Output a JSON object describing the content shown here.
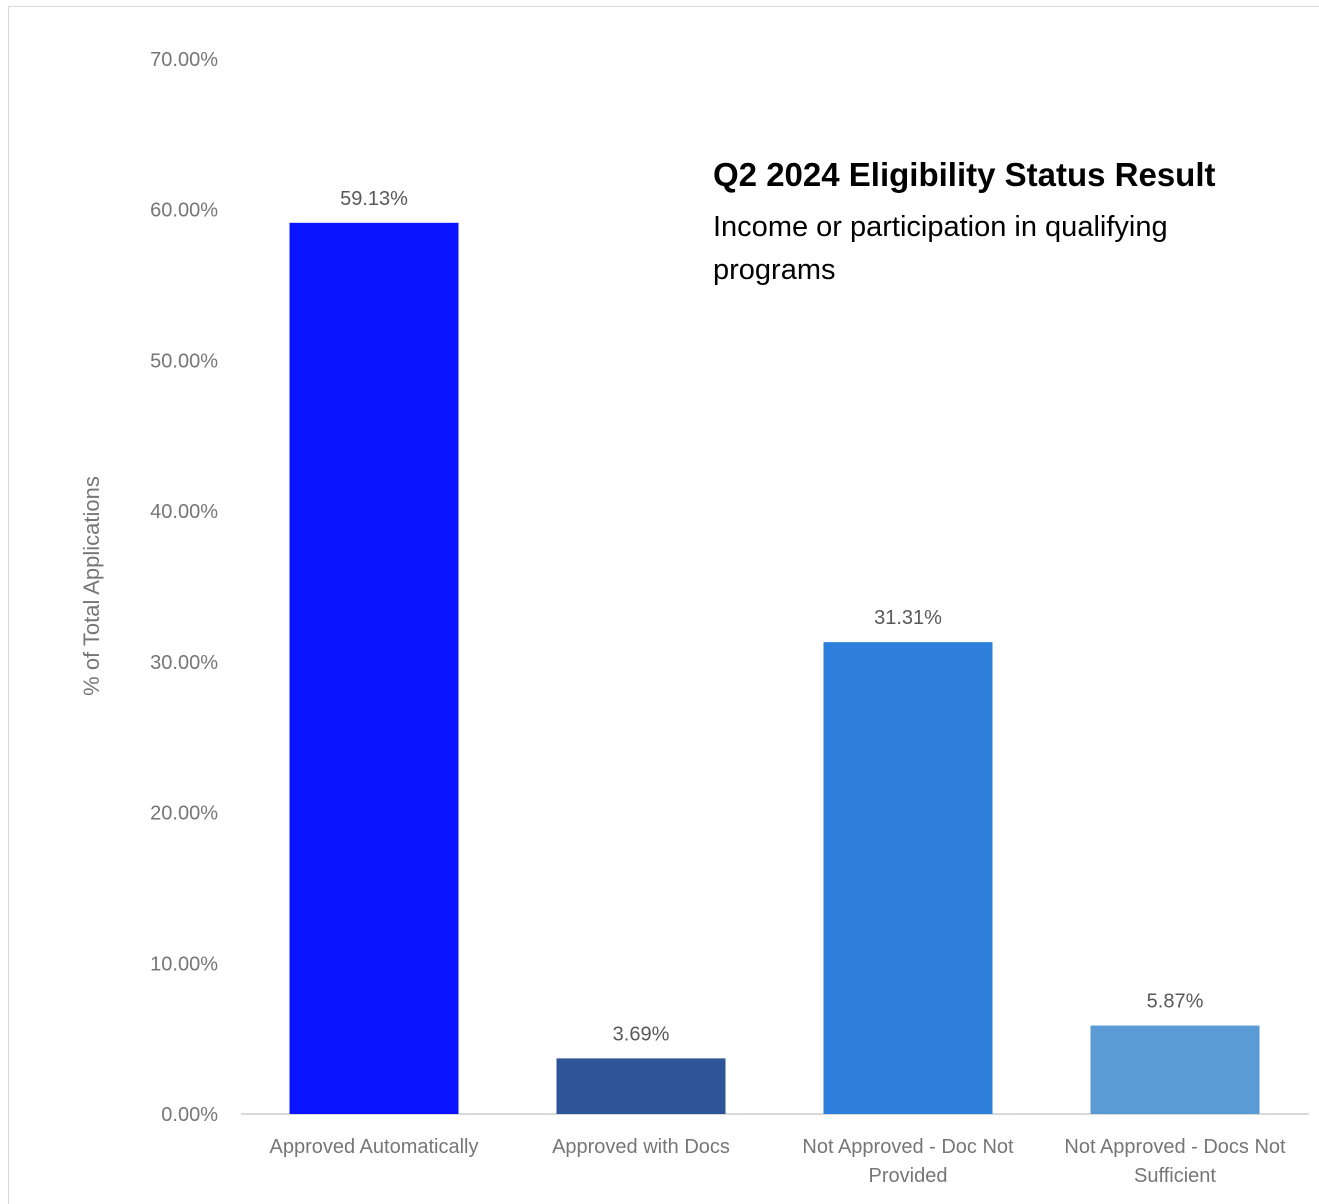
{
  "chart_data": {
    "type": "bar",
    "title": "Q2 2024 Eligibility Status Result",
    "subtitle": "Income or participation in qualifying programs",
    "ylabel": "% of Total Applications",
    "xlabel": "",
    "ylim": [
      0,
      70
    ],
    "yticks": [
      "0.00%",
      "10.00%",
      "20.00%",
      "30.00%",
      "40.00%",
      "50.00%",
      "60.00%",
      "70.00%"
    ],
    "grid": false,
    "legend": "none",
    "categories": [
      [
        "Approved Automatically"
      ],
      [
        "Approved with Docs"
      ],
      [
        "Not Approved - Doc Not",
        "Provided"
      ],
      [
        "Not Approved - Docs Not",
        "Sufficient"
      ]
    ],
    "values": [
      59.13,
      3.69,
      31.31,
      5.87
    ],
    "data_labels": [
      "59.13%",
      "3.69%",
      "31.31%",
      "5.87%"
    ],
    "colors": [
      "#0a14ff",
      "#2e5597",
      "#2e7fdb",
      "#5a9bd5"
    ]
  }
}
